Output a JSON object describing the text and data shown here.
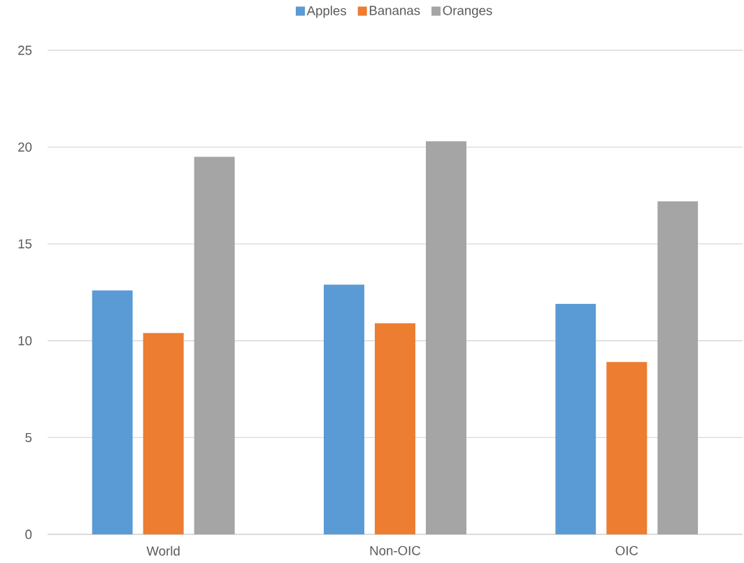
{
  "chart_data": {
    "type": "bar",
    "categories": [
      "World",
      "Non-OIC",
      "OIC"
    ],
    "series": [
      {
        "name": "Apples",
        "color": "#5b9bd5",
        "values": [
          12.6,
          12.9,
          11.9
        ]
      },
      {
        "name": "Bananas",
        "color": "#ed7d31",
        "values": [
          10.4,
          10.9,
          8.9
        ]
      },
      {
        "name": "Oranges",
        "color": "#a5a5a5",
        "values": [
          19.5,
          20.3,
          17.2
        ]
      }
    ],
    "ylim": [
      0,
      25
    ],
    "yticks": [
      0,
      5,
      10,
      15,
      20,
      25
    ],
    "grid": "y",
    "legend": "top"
  }
}
